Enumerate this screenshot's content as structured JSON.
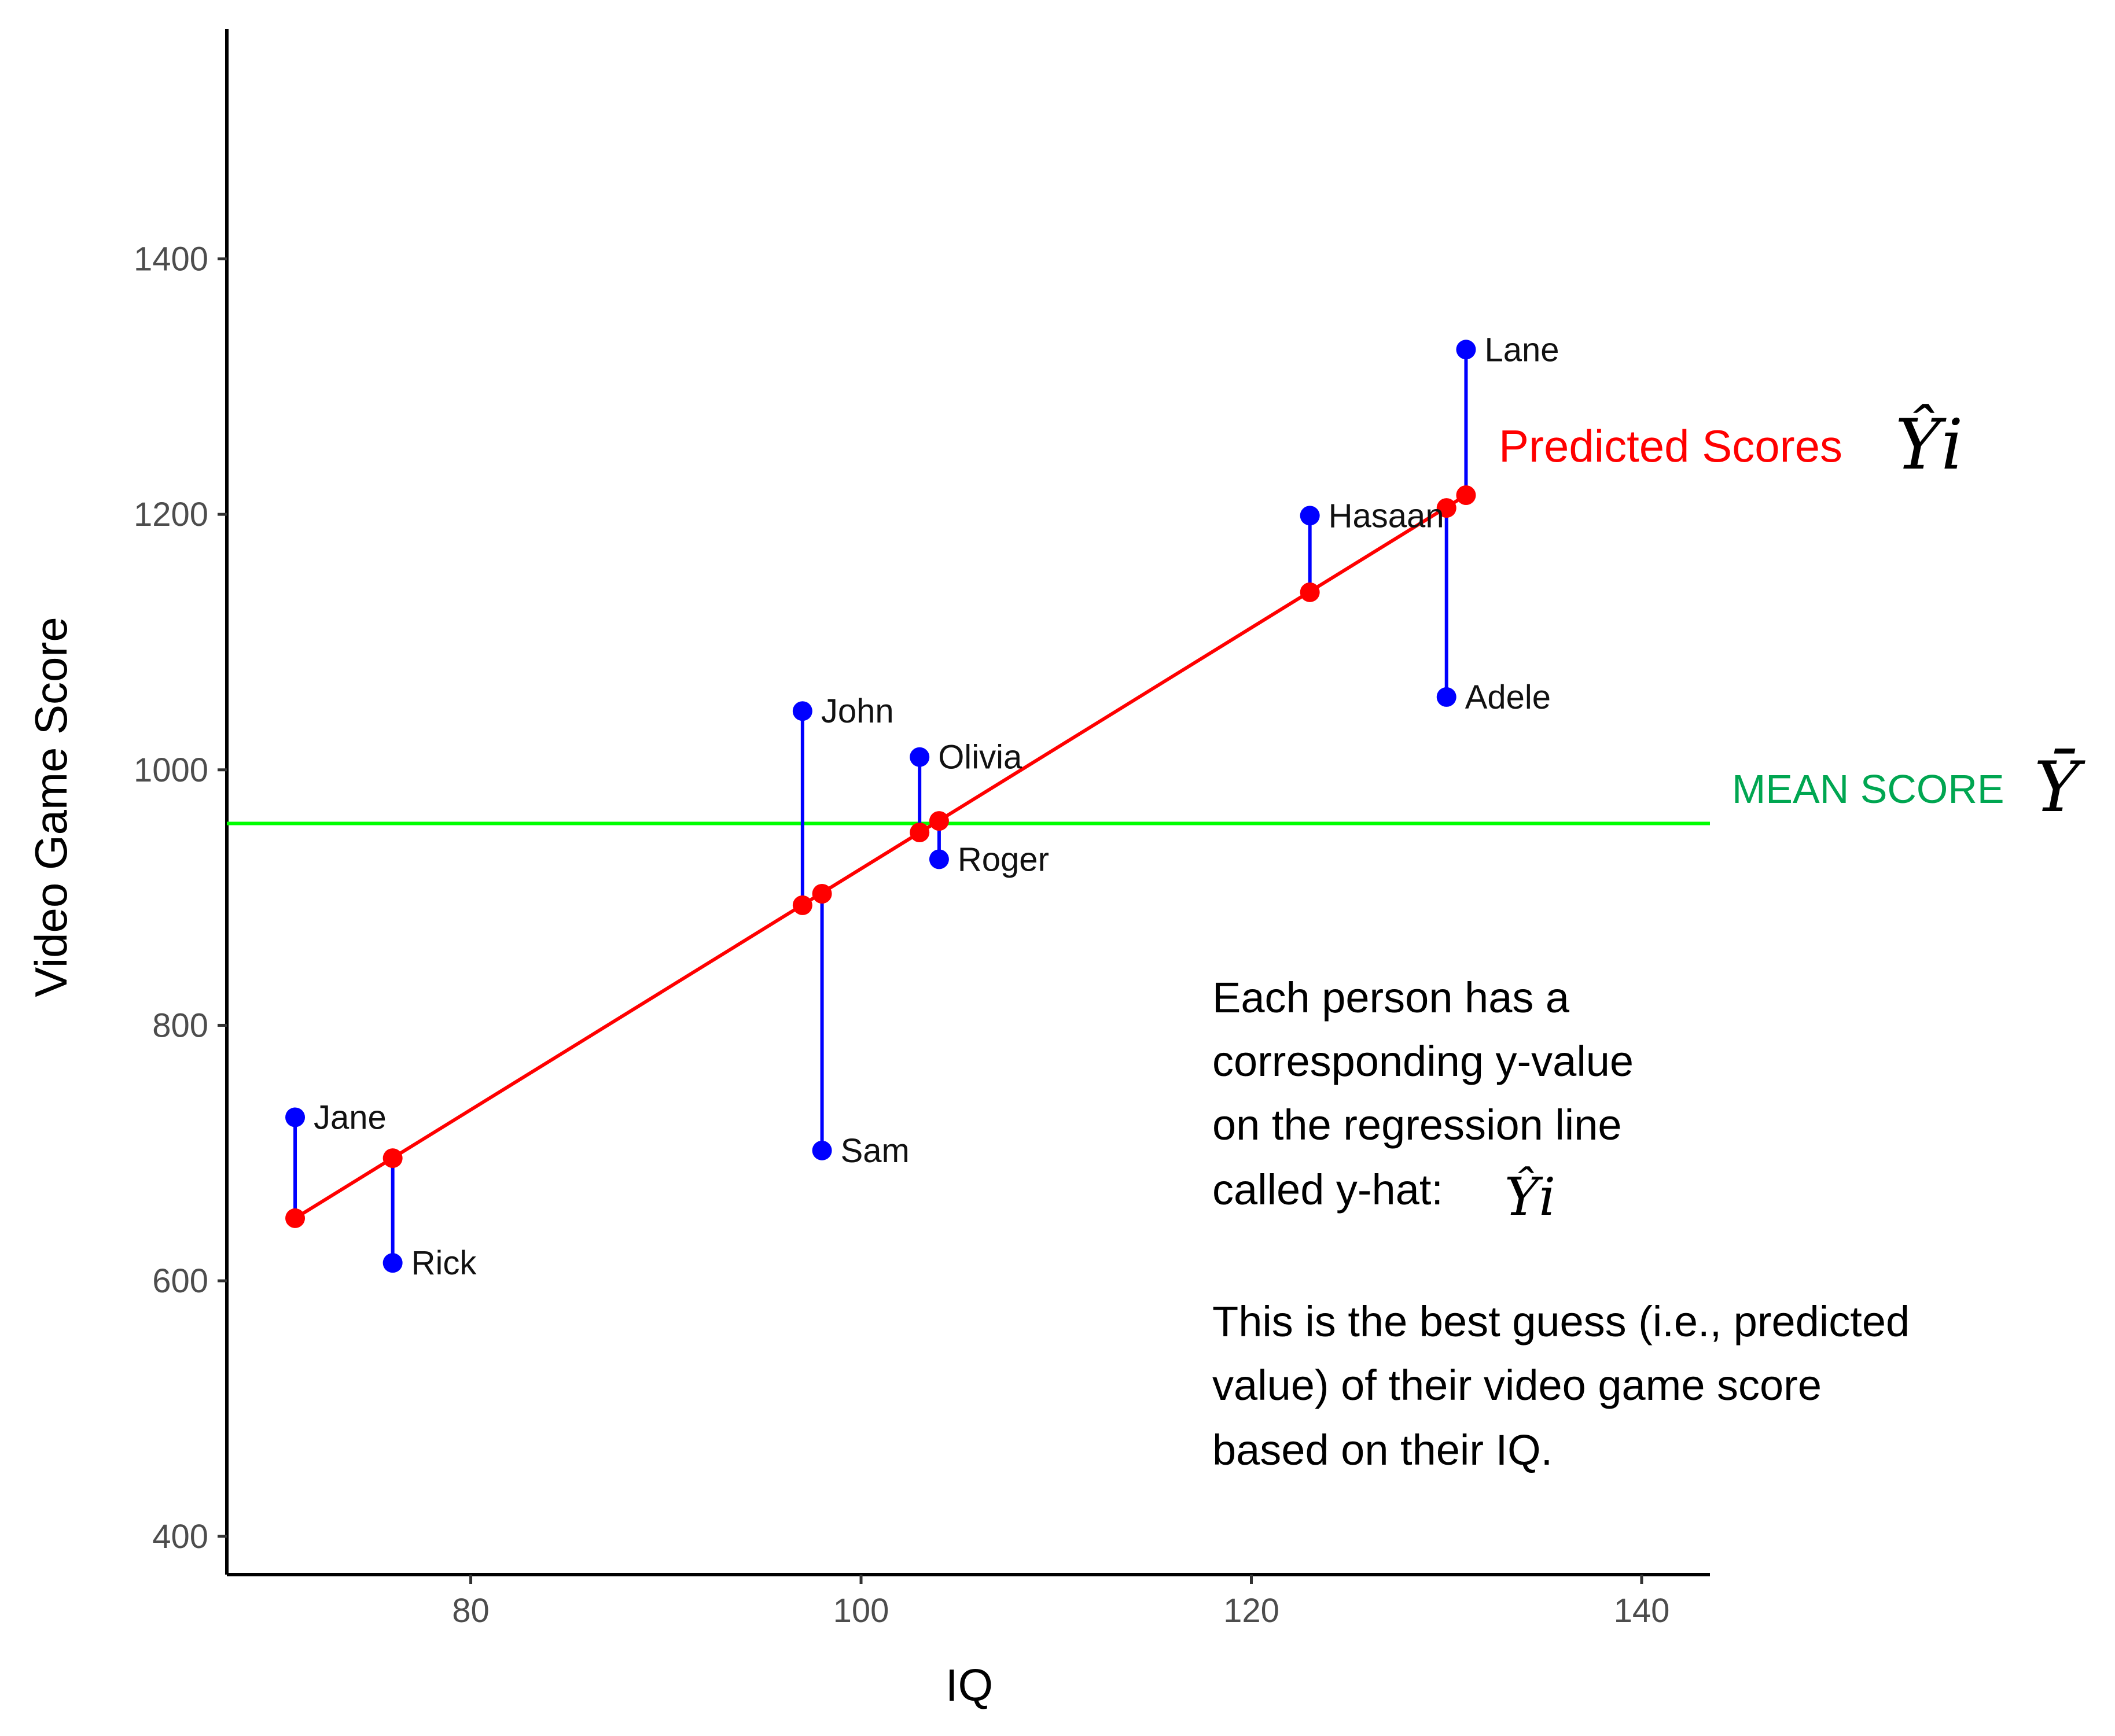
{
  "chart_data": {
    "type": "scatter",
    "title": "",
    "xlabel": "IQ",
    "ylabel": "Video Game Score",
    "xlim": [
      67.5,
      143.5
    ],
    "ylim": [
      370,
      1580
    ],
    "x_ticks": [
      80,
      100,
      120,
      140
    ],
    "y_ticks": [
      400,
      600,
      800,
      1000,
      1200,
      1400
    ],
    "grid": false,
    "regression": {
      "x0": 71,
      "y0": 649,
      "x1": 131,
      "y1": 1215,
      "color": "#ff0000"
    },
    "mean": {
      "value": 958,
      "color": "#00ff00"
    },
    "points": [
      {
        "name": "Jane",
        "x": 71,
        "y": 728,
        "yhat": 649
      },
      {
        "name": "Rick",
        "x": 76,
        "y": 614,
        "yhat": 696
      },
      {
        "name": "John",
        "x": 97,
        "y": 1046,
        "yhat": 894
      },
      {
        "name": "Sam",
        "x": 98,
        "y": 702,
        "yhat": 903
      },
      {
        "name": "Olivia",
        "x": 103,
        "y": 1010,
        "yhat": 951
      },
      {
        "name": "Roger",
        "x": 104,
        "y": 930,
        "yhat": 960
      },
      {
        "name": "Hasaan",
        "x": 123,
        "y": 1199,
        "yhat": 1139
      },
      {
        "name": "Adele",
        "x": 130,
        "y": 1057,
        "yhat": 1205
      },
      {
        "name": "Lane",
        "x": 131,
        "y": 1329,
        "yhat": 1215
      }
    ],
    "colors": {
      "observed": "#0000ff",
      "predicted": "#ff0000",
      "residual": "#0000ff"
    }
  },
  "annotations": {
    "predicted_label": "Predicted Scores",
    "predicted_symbol": "Ŷi",
    "mean_label": "MEAN SCORE",
    "mean_symbol": "Ȳ",
    "predicted_color": "#ff0000",
    "mean_color": "#00a651"
  },
  "info": {
    "line1": "Each person has a",
    "line2": "corresponding y-value",
    "line3": "on the regression line",
    "line4": "called y-hat:",
    "line4_symbol": "Ŷi",
    "line5": "This is the best guess (i.e., predicted",
    "line6": "value) of their video game score",
    "line7": "based on their IQ."
  }
}
